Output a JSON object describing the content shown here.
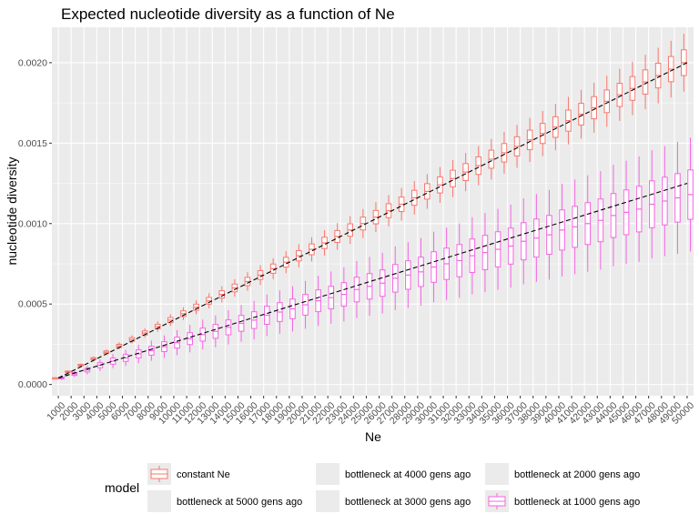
{
  "chart_data": {
    "type": "boxplot",
    "title": "Expected nucleotide diversity as a function of Ne",
    "xlabel": "Ne",
    "ylabel": "nucleotide diversity",
    "ylim": [
      -7e-05,
      0.00222
    ],
    "yticks": [
      0.0,
      0.0005,
      0.001,
      0.0015,
      0.002
    ],
    "ytick_labels": [
      "0.0000",
      "0.0005",
      "0.0010",
      "0.0015",
      "0.0020"
    ],
    "categories": [
      "1000",
      "2000",
      "3000",
      "4000",
      "5000",
      "6000",
      "7000",
      "8000",
      "9000",
      "10000",
      "11000",
      "12000",
      "13000",
      "14000",
      "15000",
      "16000",
      "17000",
      "18000",
      "19000",
      "20000",
      "21000",
      "22000",
      "23000",
      "24000",
      "25000",
      "26000",
      "27000",
      "28000",
      "29000",
      "30000",
      "31000",
      "32000",
      "33000",
      "34000",
      "35000",
      "36000",
      "37000",
      "38000",
      "39000",
      "40000",
      "41000",
      "42000",
      "43000",
      "44000",
      "45000",
      "46000",
      "47000",
      "48000",
      "49000",
      "50000"
    ],
    "grid": true,
    "background": "#EBEBEB",
    "legend": {
      "title": "model",
      "position": "bottom",
      "entries": [
        {
          "label": "constant Ne",
          "color": "#F8766D",
          "shown": true
        },
        {
          "label": "bottleneck at 5000 gens ago",
          "color": "#B79F00",
          "shown": false
        },
        {
          "label": "bottleneck at 4000 gens ago",
          "color": "#00BA38",
          "shown": false
        },
        {
          "label": "bottleneck at 3000 gens ago",
          "color": "#00BFC4",
          "shown": false
        },
        {
          "label": "bottleneck at 2000 gens ago",
          "color": "#619CFF",
          "shown": false
        },
        {
          "label": "bottleneck at 1000 gens ago",
          "color": "#F564E3",
          "shown": true
        }
      ]
    },
    "series": [
      {
        "name": "constant Ne",
        "color": "#F8766D",
        "median": [
          4e-05,
          8e-05,
          0.00012,
          0.00016,
          0.0002,
          0.00024,
          0.00028,
          0.00032,
          0.00036,
          0.0004,
          0.00044,
          0.00048,
          0.00052,
          0.00056,
          0.0006,
          0.00064,
          0.00068,
          0.00072,
          0.00076,
          0.0008,
          0.00084,
          0.00088,
          0.00092,
          0.00096,
          0.001,
          0.00104,
          0.00108,
          0.00112,
          0.00116,
          0.0012,
          0.00124,
          0.00128,
          0.00132,
          0.00136,
          0.0014,
          0.00144,
          0.00148,
          0.00152,
          0.00156,
          0.0016,
          0.00164,
          0.00168,
          0.00172,
          0.00176,
          0.0018,
          0.00184,
          0.00188,
          0.00192,
          0.00196,
          0.002
        ],
        "iqr_pct": 0.04,
        "whisker_pct": 0.09
      },
      {
        "name": "bottleneck at 1000 gens ago",
        "color": "#F564E3",
        "median": [
          4e-05,
          6.5e-05,
          9e-05,
          0.00012,
          0.000145,
          0.000165,
          0.00019,
          0.00021,
          0.000235,
          0.00026,
          0.000285,
          0.00031,
          0.00033,
          0.000355,
          0.00038,
          0.0004,
          0.00043,
          0.00045,
          0.00047,
          0.000495,
          0.00052,
          0.00054,
          0.00056,
          0.00059,
          0.00061,
          0.00063,
          0.00066,
          0.00068,
          0.0007,
          0.00073,
          0.00075,
          0.00077,
          0.0008,
          0.00082,
          0.00084,
          0.00086,
          0.00089,
          0.00091,
          0.00093,
          0.00096,
          0.00098,
          0.001,
          0.00102,
          0.00105,
          0.00107,
          0.00109,
          0.00112,
          0.00114,
          0.00116,
          0.00118
        ],
        "iqr_pct": 0.13,
        "whisker_pct": 0.3
      }
    ],
    "expected_lines": [
      {
        "style": "dashed",
        "color": "#000000",
        "y_at_1000": 4e-05,
        "y_at_50000": 0.002
      },
      {
        "style": "dashed",
        "color": "#000000",
        "y_at_1000": 4e-05,
        "y_at_50000": 0.00125
      }
    ]
  }
}
